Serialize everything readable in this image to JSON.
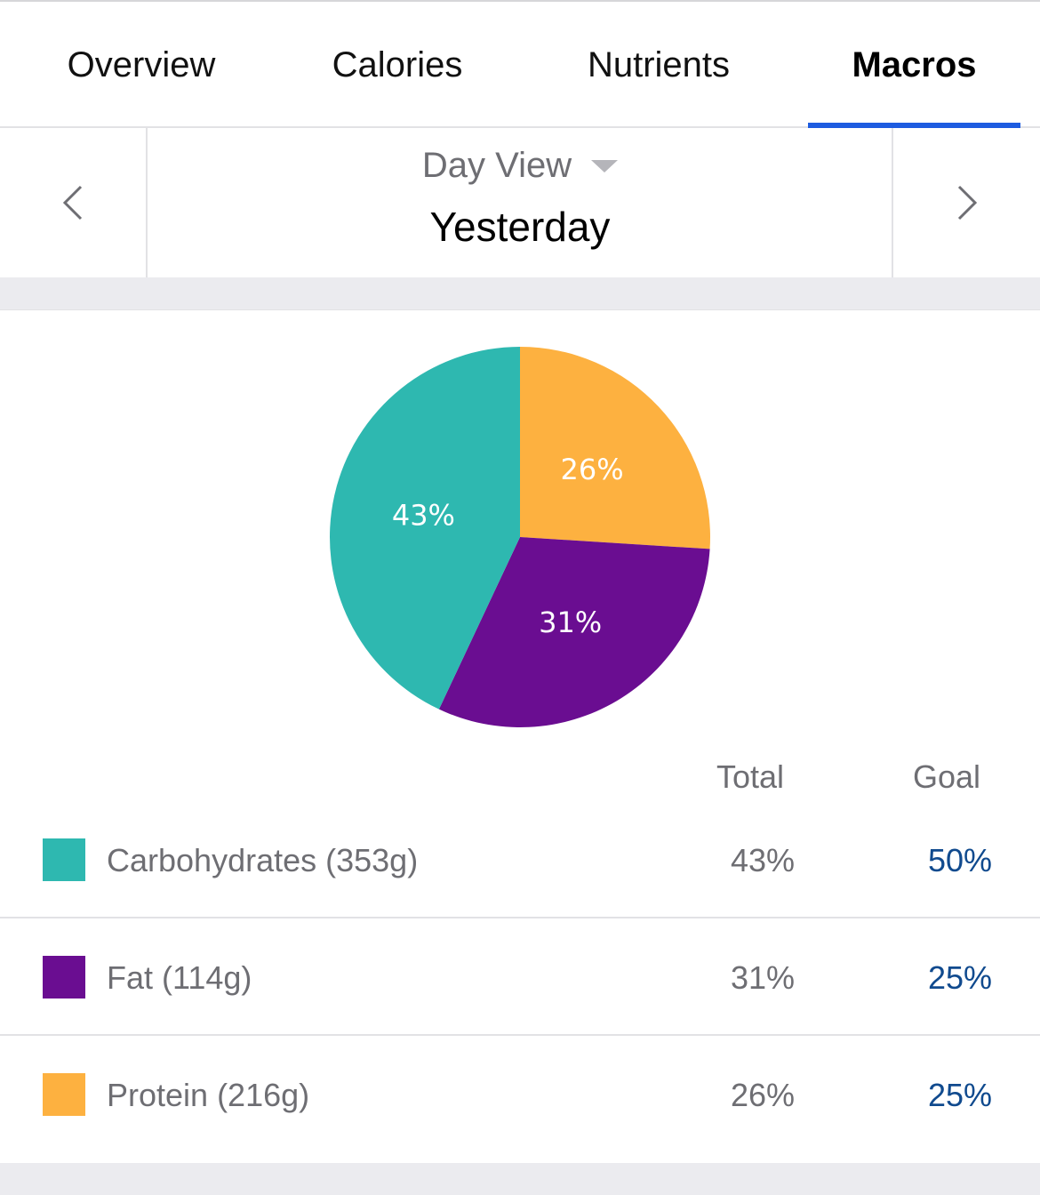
{
  "tabs": [
    {
      "label": "Overview",
      "active": false
    },
    {
      "label": "Calories",
      "active": false
    },
    {
      "label": "Nutrients",
      "active": false
    },
    {
      "label": "Macros",
      "active": true
    }
  ],
  "day_nav": {
    "view_mode": "Day View",
    "day": "Yesterday"
  },
  "colors": {
    "carbohydrates": "#2eb8b0",
    "fat": "#6a0d91",
    "protein": "#fdb140",
    "accent": "#1d5ce0",
    "goal_text": "#104a8e"
  },
  "chart_data": {
    "type": "pie",
    "slices": [
      {
        "name": "Protein",
        "value": 26,
        "label": "26%",
        "color": "#fdb140"
      },
      {
        "name": "Fat",
        "value": 31,
        "label": "31%",
        "color": "#6a0d91"
      },
      {
        "name": "Carbohydrates",
        "value": 43,
        "label": "43%",
        "color": "#2eb8b0"
      }
    ]
  },
  "table": {
    "headers": {
      "total": "Total",
      "goal": "Goal"
    },
    "rows": [
      {
        "label": "Carbohydrates (353g)",
        "total": "43%",
        "goal": "50%",
        "color": "#2eb8b0"
      },
      {
        "label": "Fat (114g)",
        "total": "31%",
        "goal": "25%",
        "color": "#6a0d91"
      },
      {
        "label": "Protein (216g)",
        "total": "26%",
        "goal": "25%",
        "color": "#fdb140"
      }
    ]
  }
}
